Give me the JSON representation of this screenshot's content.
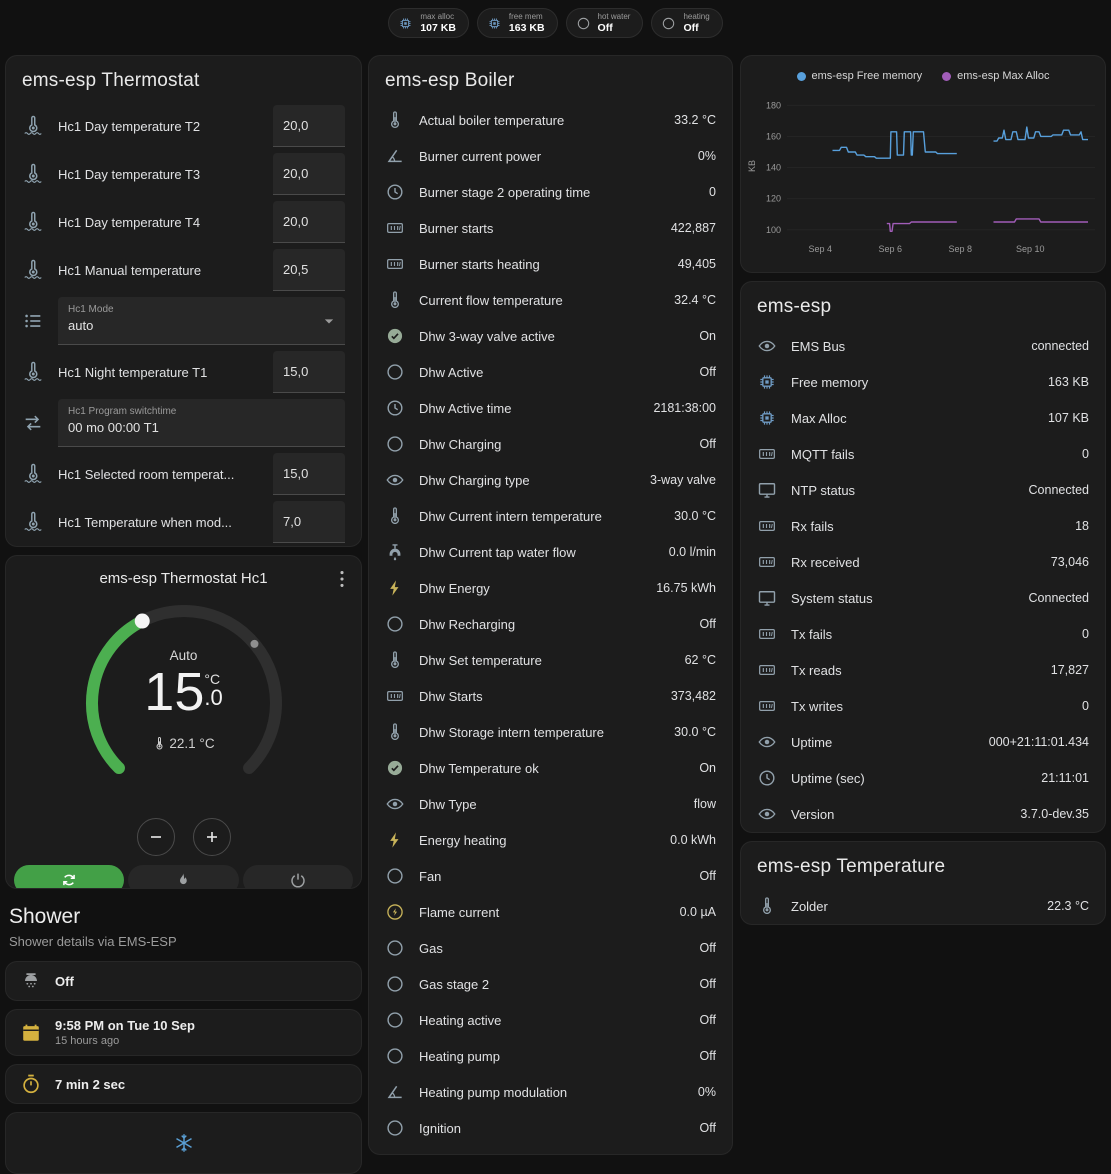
{
  "header_chips": [
    {
      "icon": "chip-icon",
      "icon_color": "#6f9bc4",
      "label": "max alloc",
      "value": "107 KB"
    },
    {
      "icon": "chip-icon",
      "icon_color": "#6f9bc4",
      "label": "free mem",
      "value": "163 KB"
    },
    {
      "icon": "circle-outline-icon",
      "icon_color": "#9da0a2",
      "label": "hot water",
      "value": "Off"
    },
    {
      "icon": "circle-outline-icon",
      "icon_color": "#9da0a2",
      "label": "heating",
      "value": "Off"
    }
  ],
  "thermostat_card": {
    "title": "ems-esp Thermostat",
    "rows": [
      {
        "type": "number",
        "icon": "thermometer-water-icon",
        "label": "Hc1 Day temperature T2",
        "value": "20,0"
      },
      {
        "type": "number",
        "icon": "thermometer-water-icon",
        "label": "Hc1 Day temperature T3",
        "value": "20,0"
      },
      {
        "type": "number",
        "icon": "thermometer-water-icon",
        "label": "Hc1 Day temperature T4",
        "value": "20,0"
      },
      {
        "type": "number",
        "icon": "thermometer-water-icon",
        "label": "Hc1 Manual temperature",
        "value": "20,5"
      },
      {
        "type": "select",
        "icon": "format-list-icon",
        "label": "Hc1 Mode",
        "value": "auto"
      },
      {
        "type": "number",
        "icon": "thermometer-water-icon",
        "label": "Hc1 Night temperature T1",
        "value": "15,0"
      },
      {
        "type": "text",
        "icon": "swap-horizontal-icon",
        "label": "Hc1 Program switchtime",
        "value": "00 mo 00:00 T1"
      },
      {
        "type": "number",
        "icon": "thermometer-water-icon",
        "label": "Hc1 Selected room temperat...",
        "value": "15,0"
      },
      {
        "type": "number",
        "icon": "thermometer-water-icon",
        "label": "Hc1 Temperature when mod...",
        "value": "7,0"
      }
    ]
  },
  "dial_card": {
    "title": "ems-esp Thermostat Hc1",
    "mode_label": "Auto",
    "temp_integer": "15",
    "temp_decimal": ".0",
    "temp_unit": "°C",
    "current_temperature": "22.1 °C",
    "accent_color": "#4caf50",
    "hvac_modes": [
      {
        "name": "auto",
        "icon": "autorenew-icon",
        "active": true
      },
      {
        "name": "heat",
        "icon": "flame-icon",
        "active": false
      },
      {
        "name": "off",
        "icon": "power-icon",
        "active": false
      }
    ]
  },
  "shower": {
    "title": "Shower",
    "subtitle": "Shower details via EMS-ESP",
    "cards": [
      {
        "icon": "shower-head-icon",
        "icon_color": "#9da0a2",
        "primary": "Off"
      },
      {
        "icon": "calendar-icon",
        "icon_color": "#d4b13f",
        "primary": "9:58 PM on Tue 10 Sep",
        "secondary": "15 hours ago"
      },
      {
        "icon": "timer-icon",
        "icon_color": "#d4b13f",
        "primary": "7 min 2 sec"
      }
    ],
    "frost_icon": "snowflake-icon",
    "frost_icon_color": "#5a9fd4"
  },
  "boiler_card": {
    "title": "ems-esp Boiler",
    "rows": [
      {
        "icon": "thermometer-icon",
        "label": "Actual boiler temperature",
        "value": "33.2 °C"
      },
      {
        "icon": "angle-icon",
        "label": "Burner current power",
        "value": "0%"
      },
      {
        "icon": "clock-icon",
        "label": "Burner stage 2 operating time",
        "value": "0"
      },
      {
        "icon": "counter-icon",
        "label": "Burner starts",
        "value": "422,887"
      },
      {
        "icon": "counter-icon",
        "label": "Burner starts heating",
        "value": "49,405"
      },
      {
        "icon": "thermometer-icon",
        "label": "Current flow temperature",
        "value": "32.4 °C"
      },
      {
        "icon": "check-circle-icon",
        "icon_color": "#97ab97",
        "label": "Dhw 3-way valve active",
        "value": "On"
      },
      {
        "icon": "circle-outline-icon",
        "label": "Dhw Active",
        "value": "Off"
      },
      {
        "icon": "clock-icon",
        "label": "Dhw Active time",
        "value": "2181:38:00"
      },
      {
        "icon": "circle-outline-icon",
        "label": "Dhw Charging",
        "value": "Off"
      },
      {
        "icon": "eye-icon",
        "label": "Dhw Charging type",
        "value": "3-way valve"
      },
      {
        "icon": "thermometer-icon",
        "label": "Dhw Current intern temperature",
        "value": "30.0 °C"
      },
      {
        "icon": "faucet-icon",
        "label": "Dhw Current tap water flow",
        "value": "0.0 l/min"
      },
      {
        "icon": "flash-icon",
        "icon_color": "#c9b45a",
        "label": "Dhw Energy",
        "value": "16.75 kWh"
      },
      {
        "icon": "circle-outline-icon",
        "label": "Dhw Recharging",
        "value": "Off"
      },
      {
        "icon": "thermometer-icon",
        "label": "Dhw Set temperature",
        "value": "62 °C"
      },
      {
        "icon": "counter-icon",
        "label": "Dhw Starts",
        "value": "373,482"
      },
      {
        "icon": "thermometer-icon",
        "label": "Dhw Storage intern temperature",
        "value": "30.0 °C"
      },
      {
        "icon": "check-circle-icon",
        "icon_color": "#97ab97",
        "label": "Dhw Temperature ok",
        "value": "On"
      },
      {
        "icon": "eye-icon",
        "label": "Dhw Type",
        "value": "flow"
      },
      {
        "icon": "flash-icon",
        "icon_color": "#c9b45a",
        "label": "Energy heating",
        "value": "0.0 kWh"
      },
      {
        "icon": "circle-outline-icon",
        "label": "Fan",
        "value": "Off"
      },
      {
        "icon": "flash-circle-icon",
        "icon_color": "#c9b45a",
        "label": "Flame current",
        "value": "0.0 µA"
      },
      {
        "icon": "circle-outline-icon",
        "label": "Gas",
        "value": "Off"
      },
      {
        "icon": "circle-outline-icon",
        "label": "Gas stage 2",
        "value": "Off"
      },
      {
        "icon": "circle-outline-icon",
        "label": "Heating active",
        "value": "Off"
      },
      {
        "icon": "circle-outline-icon",
        "label": "Heating pump",
        "value": "Off"
      },
      {
        "icon": "angle-icon",
        "label": "Heating pump modulation",
        "value": "0%"
      },
      {
        "icon": "circle-outline-icon",
        "label": "Ignition",
        "value": "Off"
      }
    ]
  },
  "ems_card": {
    "title": "ems-esp",
    "rows": [
      {
        "icon": "eye-icon",
        "label": "EMS Bus",
        "value": "connected"
      },
      {
        "icon": "chip-icon",
        "icon_color": "#6f9bc4",
        "label": "Free memory",
        "value": "163 KB"
      },
      {
        "icon": "chip-icon",
        "icon_color": "#6f9bc4",
        "label": "Max Alloc",
        "value": "107 KB"
      },
      {
        "icon": "counter-icon",
        "label": "MQTT fails",
        "value": "0"
      },
      {
        "icon": "monitor-icon",
        "label": "NTP status",
        "value": "Connected"
      },
      {
        "icon": "counter-icon",
        "label": "Rx fails",
        "value": "18"
      },
      {
        "icon": "counter-icon",
        "label": "Rx received",
        "value": "73,046"
      },
      {
        "icon": "monitor-icon",
        "label": "System status",
        "value": "Connected"
      },
      {
        "icon": "counter-icon",
        "label": "Tx fails",
        "value": "0"
      },
      {
        "icon": "counter-icon",
        "label": "Tx reads",
        "value": "17,827"
      },
      {
        "icon": "counter-icon",
        "label": "Tx writes",
        "value": "0"
      },
      {
        "icon": "eye-icon",
        "label": "Uptime",
        "value": "000+21:11:01.434"
      },
      {
        "icon": "clock-icon",
        "label": "Uptime (sec)",
        "value": "21:11:01"
      },
      {
        "icon": "eye-icon",
        "label": "Version",
        "value": "3.7.0-dev.35"
      }
    ]
  },
  "temperature_card": {
    "title": "ems-esp Temperature",
    "rows": [
      {
        "icon": "thermometer-icon",
        "label": "Zolder",
        "value": "22.3 °C"
      }
    ]
  },
  "chart_data": {
    "type": "line",
    "ylabel": "KB",
    "ylim": [
      96,
      186
    ],
    "yticks": [
      100,
      120,
      140,
      160,
      180
    ],
    "xlim": [
      3.05,
      11.85
    ],
    "xticks": [
      {
        "v": 4,
        "label": "Sep 4"
      },
      {
        "v": 6,
        "label": "Sep 6"
      },
      {
        "v": 8,
        "label": "Sep 8"
      },
      {
        "v": 10,
        "label": "Sep 10"
      }
    ],
    "legend_position": "top",
    "grid": true,
    "series": [
      {
        "name": "ems-esp Free memory",
        "color": "#58a0dc",
        "segments": [
          [
            [
              4.35,
              151
            ],
            [
              4.55,
              151
            ],
            [
              4.6,
              153
            ],
            [
              4.75,
              153
            ],
            [
              4.8,
              150
            ],
            [
              5.0,
              150
            ],
            [
              5.05,
              148
            ],
            [
              5.25,
              148
            ],
            [
              5.3,
              147
            ],
            [
              5.55,
              147
            ],
            [
              5.6,
              146
            ],
            [
              6.0,
              146
            ],
            [
              6.02,
              163
            ],
            [
              6.18,
              163
            ],
            [
              6.2,
              148
            ],
            [
              6.38,
              148
            ],
            [
              6.4,
              163
            ],
            [
              6.58,
              163
            ],
            [
              6.6,
              148
            ],
            [
              6.63,
              148
            ],
            [
              6.66,
              163
            ],
            [
              6.95,
              163
            ],
            [
              7.0,
              150
            ],
            [
              7.3,
              150
            ],
            [
              7.35,
              149
            ],
            [
              7.9,
              149
            ]
          ],
          [
            [
              8.95,
              157
            ],
            [
              9.05,
              157
            ],
            [
              9.1,
              159
            ],
            [
              9.2,
              159
            ],
            [
              9.25,
              164
            ],
            [
              9.3,
              158
            ],
            [
              9.45,
              158
            ],
            [
              9.5,
              163
            ],
            [
              9.6,
              163
            ],
            [
              9.65,
              158
            ],
            [
              9.85,
              158
            ],
            [
              9.9,
              166
            ],
            [
              9.95,
              159
            ],
            [
              10.1,
              159
            ],
            [
              10.15,
              163
            ],
            [
              10.25,
              163
            ],
            [
              10.3,
              160
            ],
            [
              10.6,
              160
            ],
            [
              10.65,
              161
            ],
            [
              10.9,
              161
            ],
            [
              10.95,
              164
            ],
            [
              11.1,
              164
            ],
            [
              11.15,
              161
            ],
            [
              11.4,
              161
            ],
            [
              11.45,
              163
            ],
            [
              11.5,
              158
            ],
            [
              11.65,
              158
            ]
          ]
        ]
      },
      {
        "name": "ems-esp Max Alloc",
        "color": "#a15db8",
        "segments": [
          [
            [
              5.9,
              104
            ],
            [
              5.98,
              104
            ],
            [
              6.0,
              99
            ],
            [
              6.05,
              99
            ],
            [
              6.08,
              104
            ],
            [
              6.55,
              104
            ],
            [
              6.6,
              105
            ],
            [
              7.9,
              105
            ]
          ],
          [
            [
              8.95,
              105
            ],
            [
              9.55,
              105
            ],
            [
              9.6,
              107
            ],
            [
              10.25,
              107
            ],
            [
              10.3,
              105
            ],
            [
              11.65,
              105
            ]
          ]
        ]
      }
    ]
  }
}
